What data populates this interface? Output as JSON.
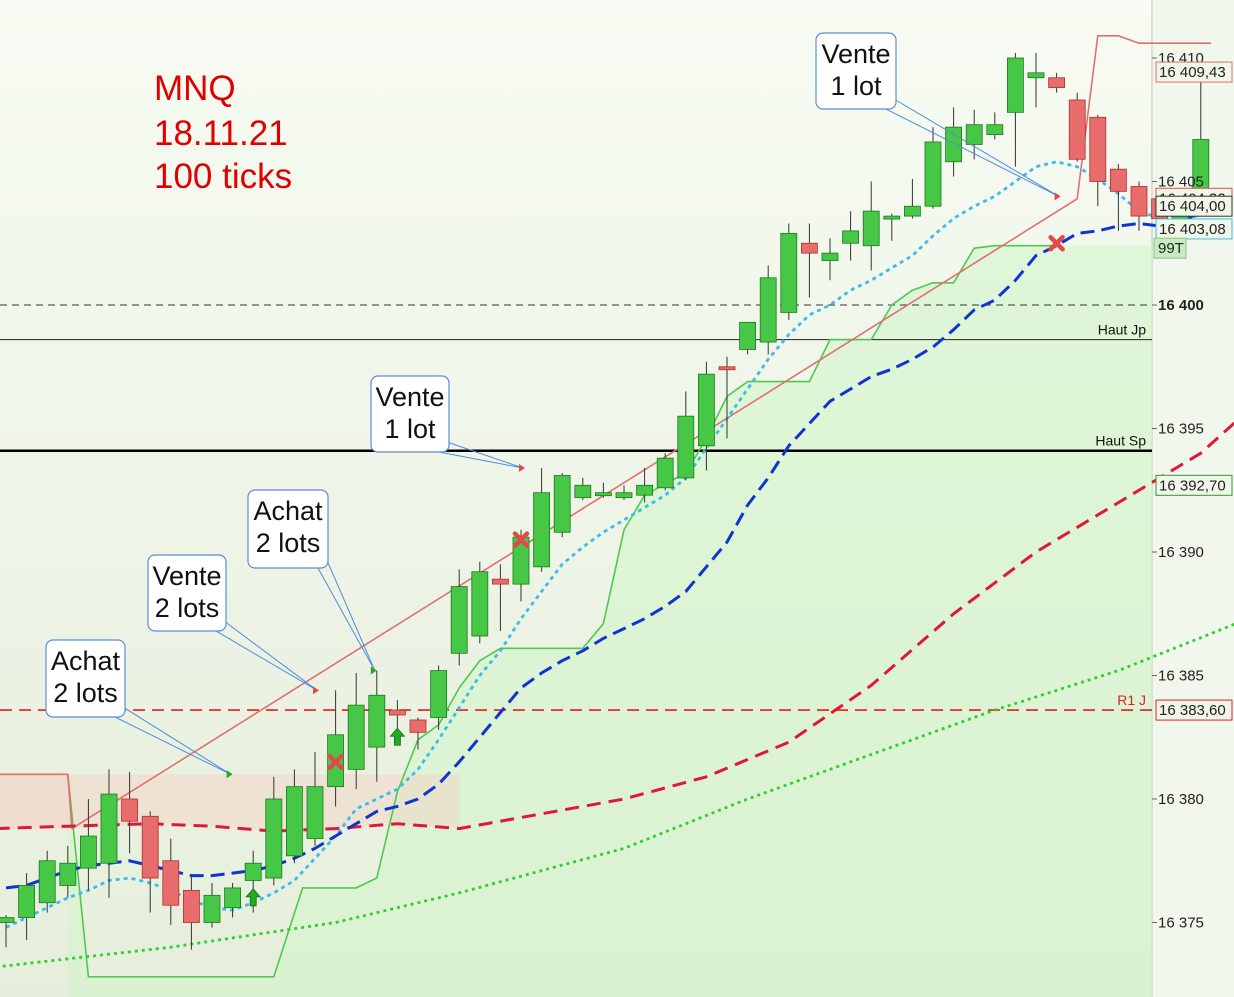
{
  "chart_data": {
    "type": "candlestick",
    "title_lines": [
      "MNQ",
      "18.11.21",
      "100 ticks"
    ],
    "ylim": [
      16372,
      16413
    ],
    "y_ticks": [
      {
        "label": "16 375",
        "value": 16375
      },
      {
        "label": "16 380",
        "value": 16380
      },
      {
        "label": "16 385",
        "value": 16385
      },
      {
        "label": "16 390",
        "value": 16390
      },
      {
        "label": "16 395",
        "value": 16395
      },
      {
        "label": "16 400",
        "value": 16400,
        "bold": true
      },
      {
        "label": "16 405",
        "value": 16405
      },
      {
        "label": "16 410",
        "value": 16410
      }
    ],
    "price_tags": [
      {
        "label": "16 409,43",
        "value": 16409.43,
        "color": "#e07070"
      },
      {
        "label": "16 404,32",
        "value": 16404.32,
        "color": "#e05050"
      },
      {
        "label": "16 404,00",
        "value": 16404.0,
        "color": "#333333"
      },
      {
        "label": "16 403,08",
        "value": 16403.08,
        "color": "#3cbcee"
      },
      {
        "label": "16 392,70",
        "value": 16392.7,
        "color": "#2c9c2c"
      },
      {
        "label": "16 383,60",
        "value": 16383.6,
        "color": "#e02020"
      }
    ],
    "volume_tag": "99T",
    "levels": [
      {
        "label": "",
        "value": 16400,
        "style": "dashed",
        "color": "#333333"
      },
      {
        "label": "Haut Jp",
        "value": 16398.6,
        "style": "solid",
        "color": "#222222"
      },
      {
        "label": "Haut Sp",
        "value": 16394.1,
        "style": "solid-thick",
        "color": "#000000"
      },
      {
        "label": "R1 J",
        "value": 16383.6,
        "style": "dashed-red",
        "color": "#e02020"
      }
    ],
    "candles": [
      [
        16375,
        16375.2,
        16374,
        16375.3
      ],
      [
        16375.2,
        16376.5,
        16374.3,
        16377.0
      ],
      [
        16375.8,
        16377.5,
        16375.4,
        16377.9
      ],
      [
        16376.5,
        16377.4,
        16376.0,
        16378.1
      ],
      [
        16377.2,
        16378.5,
        16376.3,
        16380.0
      ],
      [
        16377.4,
        16380.2,
        16376.0,
        16381.2
      ],
      [
        16380.0,
        16379.1,
        16377.8,
        16381.1
      ],
      [
        16379.3,
        16376.8,
        16375.4,
        16379.5
      ],
      [
        16377.5,
        16375.7,
        16374.9,
        16378.4
      ],
      [
        16376.3,
        16375.0,
        16373.9,
        16376.9
      ],
      [
        16375.0,
        16376.1,
        16374.8,
        16376.6
      ],
      [
        16375.6,
        16376.4,
        16375.2,
        16376.6
      ],
      [
        16376.7,
        16377.4,
        16375.4,
        16377.9
      ],
      [
        16376.8,
        16380.0,
        16376.5,
        16380.9
      ],
      [
        16377.7,
        16380.5,
        16377.4,
        16381.2
      ],
      [
        16378.4,
        16380.5,
        16378.1,
        16381.9
      ],
      [
        16380.5,
        16382.6,
        16379.7,
        16384.4
      ],
      [
        16381.2,
        16383.8,
        16380.4,
        16385.1
      ],
      [
        16382.1,
        16384.2,
        16380.7,
        16385.2
      ],
      [
        16383.6,
        16383.4,
        16382.8,
        16384.0
      ],
      [
        16383.2,
        16382.7,
        16382.0,
        16383.3
      ],
      [
        16383.3,
        16385.2,
        16382.8,
        16385.4
      ],
      [
        16385.9,
        16388.6,
        16385.4,
        16389.3
      ],
      [
        16386.6,
        16389.2,
        16386.3,
        16389.6
      ],
      [
        16388.9,
        16388.7,
        16386.8,
        16389.5
      ],
      [
        16388.7,
        16390.6,
        16388.0,
        16390.9
      ],
      [
        16389.4,
        16392.4,
        16389.2,
        16393.4
      ],
      [
        16390.8,
        16393.1,
        16390.6,
        16393.2
      ],
      [
        16392.2,
        16392.7,
        16392.1,
        16393.0
      ],
      [
        16392.3,
        16392.4,
        16392.2,
        16392.8
      ],
      [
        16392.2,
        16392.4,
        16392.1,
        16392.7
      ],
      [
        16392.3,
        16392.7,
        16392.0,
        16393.4
      ],
      [
        16392.6,
        16393.8,
        16392.5,
        16394.0
      ],
      [
        16393.0,
        16395.5,
        16392.9,
        16396.5
      ],
      [
        16394.3,
        16397.2,
        16393.3,
        16397.7
      ],
      [
        16397.5,
        16397.4,
        16394.6,
        16397.9
      ],
      [
        16398.2,
        16399.3,
        16398.0,
        16399.3
      ],
      [
        16398.5,
        16401.1,
        16398.0,
        16401.6
      ],
      [
        16399.7,
        16402.9,
        16399.4,
        16403.3
      ],
      [
        16402.5,
        16402.1,
        16400.3,
        16403.3
      ],
      [
        16401.8,
        16402.1,
        16401.0,
        16402.7
      ],
      [
        16402.5,
        16403.0,
        16401.8,
        16403.8
      ],
      [
        16402.4,
        16403.8,
        16401.4,
        16405.0
      ],
      [
        16403.6,
        16403.6,
        16402.6,
        16403.7
      ],
      [
        16403.6,
        16404.0,
        16403.5,
        16405.1
      ],
      [
        16404.0,
        16406.6,
        16403.9,
        16407.2
      ],
      [
        16405.8,
        16407.2,
        16405.2,
        16408.0
      ],
      [
        16406.5,
        16407.3,
        16405.9,
        16407.9
      ],
      [
        16406.9,
        16407.3,
        16406.7,
        16407.8
      ],
      [
        16407.8,
        16410.0,
        16405.6,
        16410.2
      ],
      [
        16409.2,
        16409.4,
        16408.0,
        16410.2
      ],
      [
        16409.2,
        16408.8,
        16408.6,
        16409.4
      ],
      [
        16408.3,
        16405.9,
        16405.8,
        16408.6
      ],
      [
        16407.6,
        16405.0,
        16404.0,
        16407.7
      ],
      [
        16405.5,
        16404.6,
        16403.0,
        16405.7
      ],
      [
        16404.8,
        16403.6,
        16403.0,
        16405.0
      ],
      [
        16404.3,
        16403.5,
        16403.0,
        16404.4
      ],
      [
        16403.5,
        16403.6,
        16403.2,
        16403.9
      ],
      [
        16403.7,
        16406.7,
        16403.6,
        16409.1
      ]
    ],
    "series": [
      {
        "name": "",
        "style": "blue-dashed",
        "color": "#1034d0",
        "values": [
          16376.4,
          16376.5,
          16376.8,
          16377.1,
          16377.3,
          16377.4,
          16377.5,
          16377.3,
          16377.1,
          16376.9,
          16376.9,
          16377.0,
          16377.1,
          16377.3,
          16377.6,
          16378.0,
          16378.5,
          16379.0,
          16379.5,
          16379.7,
          16380.0,
          16380.6,
          16381.5,
          16382.5,
          16383.5,
          16384.5,
          16385.1,
          16385.6,
          16386.0,
          16386.5,
          16386.9,
          16387.3,
          16387.8,
          16388.4,
          16389.4,
          16390.4,
          16391.9,
          16393.0,
          16394.3,
          16395.2,
          16396.1,
          16396.6,
          16397.1,
          16397.4,
          16397.8,
          16398.3,
          16399.0,
          16399.8,
          16400.2,
          16401.0,
          16402.0,
          16402.4,
          16402.9,
          16403.0,
          16403.2,
          16403.3,
          16403.2,
          16403.3,
          16403.8
        ]
      },
      {
        "name": "",
        "style": "cyan-dotted",
        "color": "#3cbcee",
        "values": [
          16374.8,
          16375.2,
          16375.6,
          16376.0,
          16376.3,
          16376.7,
          16376.8,
          16376.6,
          16376.3,
          16375.9,
          16375.6,
          16375.5,
          16375.8,
          16376.2,
          16376.7,
          16377.6,
          16378.5,
          16379.6,
          16380.0,
          16380.4,
          16381.2,
          16382.4,
          16383.7,
          16385.0,
          16386.0,
          16387.3,
          16388.4,
          16389.5,
          16390.2,
          16390.8,
          16391.3,
          16391.8,
          16392.3,
          16393.0,
          16394.2,
          16395.4,
          16396.6,
          16397.8,
          16398.8,
          16399.6,
          16400.0,
          16400.6,
          16401.0,
          16401.5,
          16402.0,
          16402.8,
          16403.5,
          16404.0,
          16404.4,
          16405.0,
          16405.6,
          16405.8,
          16405.6,
          16405.1,
          16404.5,
          16403.8,
          16403.5,
          16403.3,
          16403.7
        ]
      },
      {
        "name": "",
        "style": "red-dashed",
        "color": "#e01838",
        "points": [
          [
            -0.5,
            16378.8
          ],
          [
            3,
            16378.9
          ],
          [
            7,
            16379.0
          ],
          [
            10,
            16378.9
          ],
          [
            13,
            16378.7
          ],
          [
            16,
            16378.8
          ],
          [
            19,
            16379.0
          ],
          [
            22,
            16378.8
          ],
          [
            26,
            16379.4
          ],
          [
            30,
            16380.0
          ],
          [
            34,
            16380.9
          ],
          [
            38,
            16382.3
          ],
          [
            42,
            16384.6
          ],
          [
            46,
            16387.5
          ],
          [
            50,
            16390.0
          ],
          [
            54,
            16392.0
          ],
          [
            58,
            16394.0
          ],
          [
            60,
            16395.5
          ]
        ]
      },
      {
        "name": "",
        "style": "green-dotted",
        "color": "#30d030",
        "points": [
          [
            -0.5,
            16373.2
          ],
          [
            8,
            16374.0
          ],
          [
            16,
            16375.0
          ],
          [
            22,
            16376.2
          ],
          [
            30,
            16378.0
          ],
          [
            36,
            16380.0
          ],
          [
            42,
            16381.8
          ],
          [
            48,
            16383.6
          ],
          [
            54,
            16385.2
          ],
          [
            60,
            16387.2
          ]
        ]
      },
      {
        "name": "",
        "style": "trail-green",
        "color": "#50c850",
        "points": [
          [
            3,
            16381.0
          ],
          [
            4,
            16372.8
          ],
          [
            13,
            16372.8
          ],
          [
            14.4,
            16376.4
          ],
          [
            17,
            16376.4
          ],
          [
            18,
            16376.8
          ],
          [
            19,
            16380.3
          ],
          [
            20,
            16382.4
          ],
          [
            21,
            16383.0
          ],
          [
            22,
            16384.5
          ],
          [
            23,
            16385.6
          ],
          [
            24,
            16386.1
          ],
          [
            28,
            16386.1
          ],
          [
            29,
            16387.1
          ],
          [
            30,
            16390.9
          ],
          [
            31,
            16392.3
          ],
          [
            33,
            16393.2
          ],
          [
            34,
            16394.6
          ],
          [
            35,
            16396.3
          ],
          [
            36,
            16396.9
          ],
          [
            39,
            16396.9
          ],
          [
            40,
            16398.6
          ],
          [
            42,
            16398.6
          ],
          [
            43,
            16400.0
          ],
          [
            44,
            16400.6
          ],
          [
            45,
            16400.9
          ],
          [
            46,
            16400.9
          ],
          [
            47,
            16402.3
          ],
          [
            48,
            16402.4
          ],
          [
            51,
            16402.4
          ]
        ]
      },
      {
        "name": "",
        "style": "trail-red",
        "color": "#e07070",
        "points": [
          [
            -0.5,
            16381.0
          ],
          [
            3,
            16381.0
          ],
          [
            3.2,
            16378.8
          ],
          [
            52,
            16404.3
          ],
          [
            53,
            16410.9
          ],
          [
            54,
            16410.9
          ],
          [
            55,
            16410.6
          ],
          [
            58.5,
            16410.6
          ]
        ]
      }
    ],
    "annotations": [
      {
        "text_lines": [
          "Achat",
          "2 lots"
        ],
        "candle": 11,
        "price": 16381.0,
        "type": "buy"
      },
      {
        "text_lines": [
          "Vente",
          "2 lots"
        ],
        "candle": 15,
        "price": 16384.4,
        "type": "sell"
      },
      {
        "text_lines": [
          "Achat",
          "2 lots"
        ],
        "candle": 18,
        "price": 16385.2,
        "type": "buy"
      },
      {
        "text_lines": [
          "Vente",
          "1 lot"
        ],
        "candle": 25,
        "price": 16393.4,
        "type": "sell"
      },
      {
        "text_lines": [
          "Vente",
          "1 lot"
        ],
        "candle": 51,
        "price": 16404.4,
        "type": "sell"
      }
    ],
    "signals": [
      {
        "type": "buy-arrow",
        "candle": 12,
        "price": 16376.0
      },
      {
        "type": "sell-x",
        "candle": 16,
        "price": 16381.5
      },
      {
        "type": "buy-arrow",
        "candle": 19,
        "price": 16382.5
      },
      {
        "type": "sell-x",
        "candle": 25,
        "price": 16390.5
      },
      {
        "type": "sell-x",
        "candle": 51,
        "price": 16402.5
      }
    ]
  }
}
